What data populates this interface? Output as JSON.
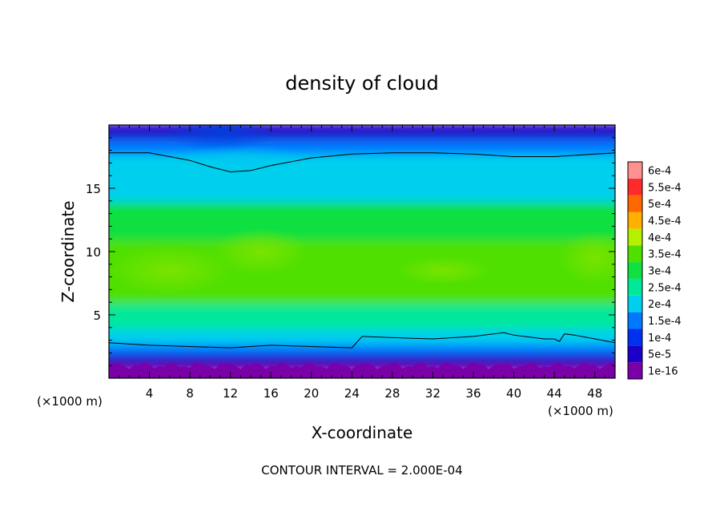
{
  "chart_data": {
    "type": "heatmap",
    "title": "density of cloud",
    "xlabel": "X-coordinate",
    "ylabel": "Z-coordinate",
    "x_unit_left": "(×1000 m)",
    "x_unit_right": "(×1000 m)",
    "footer": "CONTOUR INTERVAL = 2.000E-04",
    "xlim": [
      0,
      50
    ],
    "ylim": [
      0,
      20
    ],
    "x_ticks": [
      4,
      8,
      12,
      16,
      20,
      24,
      28,
      32,
      36,
      40,
      44,
      48
    ],
    "y_ticks": [
      5,
      10,
      15
    ],
    "colorbar": {
      "labels": [
        "1e-16",
        "5e-5",
        "1e-4",
        "1.5e-4",
        "2e-4",
        "2.5e-4",
        "3e-4",
        "3.5e-4",
        "4e-4",
        "4.5e-4",
        "5e-4",
        "5.5e-4",
        "6e-4"
      ],
      "values": [
        0,
        5e-05,
        0.0001,
        0.00015,
        0.0002,
        0.00025,
        0.0003,
        0.00035,
        0.0004,
        0.00045,
        0.0005,
        0.00055,
        0.0006
      ],
      "colors": [
        "#7a00a8",
        "#1a00c8",
        "#0030f0",
        "#0078ff",
        "#00d0ee",
        "#00e89a",
        "#10e040",
        "#50e000",
        "#b4f000",
        "#ffb000",
        "#ff6800",
        "#ff2a2a",
        "#ff9090"
      ]
    },
    "bands": [
      {
        "z_from": 0.6,
        "z_to": 1.2,
        "value": 2e-05
      },
      {
        "z_from": 1.2,
        "z_to": 2.0,
        "value": 7e-05
      },
      {
        "z_from": 2.0,
        "z_to": 2.8,
        "value": 0.00015
      },
      {
        "z_from": 2.8,
        "z_to": 4.0,
        "value": 0.00022
      },
      {
        "z_from": 4.0,
        "z_to": 6.0,
        "value": 0.00029
      },
      {
        "z_from": 6.0,
        "z_to": 11.0,
        "value": 0.00035
      },
      {
        "z_from": 11.0,
        "z_to": 14.0,
        "value": 0.00031
      },
      {
        "z_from": 14.0,
        "z_to": 17.8,
        "value": 0.00022
      },
      {
        "z_from": 17.8,
        "z_to": 19.0,
        "value": 0.00015
      },
      {
        "z_from": 19.0,
        "z_to": 20.0,
        "value": 9e-05
      }
    ],
    "contour_upper": {
      "x": [
        0,
        4,
        8,
        10,
        12,
        14,
        16,
        20,
        24,
        28,
        32,
        36,
        40,
        44,
        48,
        50
      ],
      "z": [
        17.8,
        17.8,
        17.2,
        16.7,
        16.3,
        16.4,
        16.8,
        17.4,
        17.7,
        17.8,
        17.8,
        17.7,
        17.5,
        17.5,
        17.7,
        17.8
      ]
    },
    "contour_lower": {
      "x": [
        0,
        4,
        8,
        12,
        16,
        20,
        24,
        25,
        28,
        32,
        36,
        39,
        40,
        43,
        44,
        44.5,
        45,
        46,
        48,
        50
      ],
      "z": [
        2.8,
        2.6,
        2.5,
        2.4,
        2.6,
        2.5,
        2.4,
        3.3,
        3.2,
        3.1,
        3.3,
        3.6,
        3.4,
        3.1,
        3.1,
        2.9,
        3.5,
        3.4,
        3.1,
        2.8
      ]
    }
  }
}
